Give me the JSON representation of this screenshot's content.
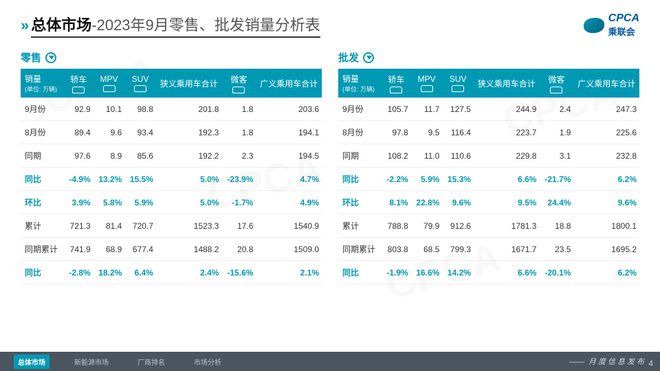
{
  "header": {
    "title_bold": "总体市场",
    "title_sub": "-2023年9月零售、批发销量分析表",
    "logo_text": "CPCA",
    "logo_sub": "乘联会"
  },
  "panels": [
    {
      "title": "零售",
      "unit_label": "销量",
      "unit_sub": "(单位: 万辆)",
      "columns": [
        "轿车",
        "MPV",
        "SUV",
        "狭义乘用车合计",
        "微客",
        "广义乘用车合计"
      ],
      "rows": [
        {
          "label": "9月份",
          "vals": [
            "92.9",
            "10.1",
            "98.8",
            "201.8",
            "1.8",
            "203.6"
          ],
          "teal": false
        },
        {
          "label": "8月份",
          "vals": [
            "89.4",
            "9.6",
            "93.4",
            "192.3",
            "1.8",
            "194.1"
          ],
          "teal": false
        },
        {
          "label": "同期",
          "vals": [
            "97.6",
            "8.9",
            "85.6",
            "192.2",
            "2.3",
            "194.5"
          ],
          "teal": false
        },
        {
          "label": "同比",
          "vals": [
            "-4.9%",
            "13.2%",
            "15.5%",
            "5.0%",
            "-23.9%",
            "4.7%"
          ],
          "teal": true
        },
        {
          "label": "环比",
          "vals": [
            "3.9%",
            "5.8%",
            "5.9%",
            "5.0%",
            "-1.7%",
            "4.9%"
          ],
          "teal": true
        },
        {
          "label": "累计",
          "vals": [
            "721.3",
            "81.4",
            "720.7",
            "1523.3",
            "17.6",
            "1540.9"
          ],
          "teal": false
        },
        {
          "label": "同期累计",
          "vals": [
            "741.9",
            "68.9",
            "677.4",
            "1488.2",
            "20.8",
            "1509.0"
          ],
          "teal": false
        },
        {
          "label": "同比",
          "vals": [
            "-2.8%",
            "18.2%",
            "6.4%",
            "2.4%",
            "-15.6%",
            "2.1%"
          ],
          "teal": true
        }
      ]
    },
    {
      "title": "批发",
      "unit_label": "销量",
      "unit_sub": "(单位: 万辆)",
      "columns": [
        "轿车",
        "MPV",
        "SUV",
        "狭义乘用车合计",
        "微客",
        "广义乘用车合计"
      ],
      "rows": [
        {
          "label": "9月份",
          "vals": [
            "105.7",
            "11.7",
            "127.5",
            "244.9",
            "2.4",
            "247.3"
          ],
          "teal": false
        },
        {
          "label": "8月份",
          "vals": [
            "97.8",
            "9.5",
            "116.4",
            "223.7",
            "1.9",
            "225.6"
          ],
          "teal": false
        },
        {
          "label": "同期",
          "vals": [
            "108.2",
            "11.0",
            "110.6",
            "229.8",
            "3.1",
            "232.8"
          ],
          "teal": false
        },
        {
          "label": "同比",
          "vals": [
            "-2.2%",
            "5.9%",
            "15.3%",
            "6.6%",
            "-21.7%",
            "6.2%"
          ],
          "teal": true
        },
        {
          "label": "环比",
          "vals": [
            "8.1%",
            "22.8%",
            "9.6%",
            "9.5%",
            "24.4%",
            "9.6%"
          ],
          "teal": true
        },
        {
          "label": "累计",
          "vals": [
            "788.8",
            "79.9",
            "912.6",
            "1781.3",
            "18.8",
            "1800.1"
          ],
          "teal": false
        },
        {
          "label": "同期累计",
          "vals": [
            "803.8",
            "68.5",
            "799.3",
            "1671.7",
            "23.5",
            "1695.2"
          ],
          "teal": false
        },
        {
          "label": "同比",
          "vals": [
            "-1.9%",
            "16.6%",
            "14.2%",
            "6.6%",
            "-20.1%",
            "6.2%"
          ],
          "teal": true
        }
      ]
    }
  ],
  "footer": {
    "tabs": [
      "总体市场",
      "新能源市场",
      "厂商排名",
      "市场分析"
    ],
    "active_tab": 0,
    "publisher": "月度信息发布",
    "page_num": "4"
  },
  "colors": {
    "accent": "#0099b3",
    "footer_bg": "#4a5560",
    "logo_blue": "#0056a6"
  }
}
